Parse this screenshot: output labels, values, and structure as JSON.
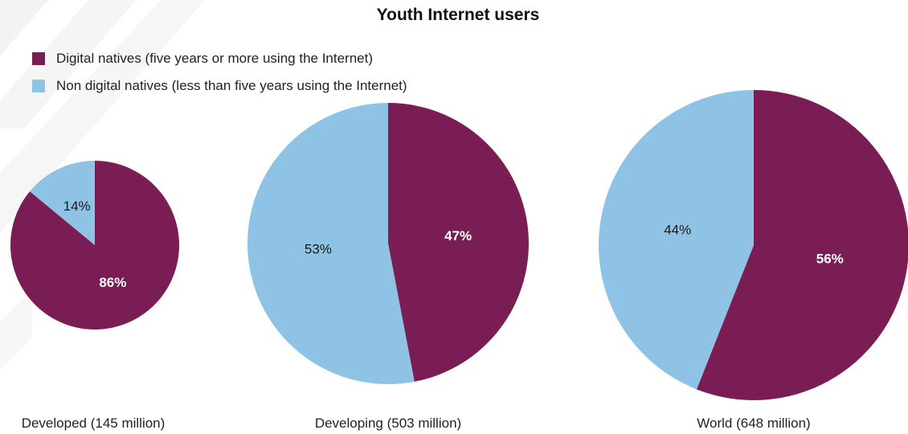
{
  "colors": {
    "digital": "#7a1d54",
    "non_digital": "#8ec3e6",
    "label_on_dark": "#ffffff",
    "label_on_light": "#1a1a1a"
  },
  "chart_data": {
    "type": "pie",
    "title": "Youth Internet users",
    "legend": [
      {
        "name": "Digital natives (five years or more using the Internet)",
        "color": "#7a1d54"
      },
      {
        "name": "Non digital natives (less than five years using the Internet)",
        "color": "#8ec3e6"
      }
    ],
    "legend_position": "top-left",
    "pies": [
      {
        "caption": "Developed (145 million)",
        "total_millions": 145,
        "slices": [
          {
            "series": "Digital natives",
            "value": 86,
            "label": "86%"
          },
          {
            "series": "Non digital natives",
            "value": 14,
            "label": "14%"
          }
        ]
      },
      {
        "caption": "Developing (503 million)",
        "total_millions": 503,
        "slices": [
          {
            "series": "Digital natives",
            "value": 47,
            "label": "47%"
          },
          {
            "series": "Non digital natives",
            "value": 53,
            "label": "53%"
          }
        ]
      },
      {
        "caption": "World (648 million)",
        "total_millions": 648,
        "slices": [
          {
            "series": "Digital natives",
            "value": 56,
            "label": "56%"
          },
          {
            "series": "Non digital natives",
            "value": 44,
            "label": "44%"
          }
        ]
      }
    ]
  }
}
